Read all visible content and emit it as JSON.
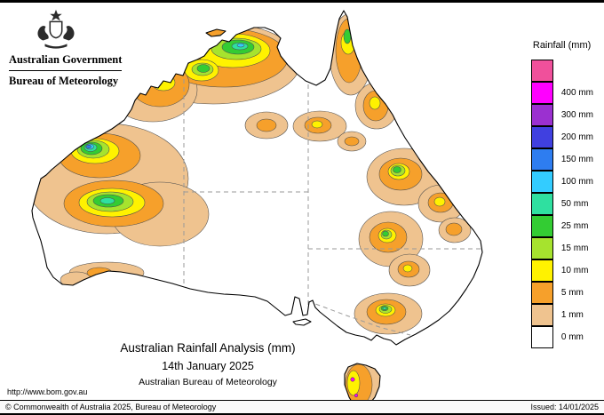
{
  "header": {
    "gov": "Australian Government",
    "bureau": "Bureau of Meteorology"
  },
  "legend": {
    "title": "Rainfall (mm)",
    "entries": [
      {
        "label": "",
        "color": "#f0509b"
      },
      {
        "label": "400 mm",
        "color": "#ff00ff"
      },
      {
        "label": "300 mm",
        "color": "#9b30d0"
      },
      {
        "label": "200 mm",
        "color": "#4040e0"
      },
      {
        "label": "150 mm",
        "color": "#2e7df0"
      },
      {
        "label": "100 mm",
        "color": "#33ccff"
      },
      {
        "label": "50 mm",
        "color": "#2fe0a0"
      },
      {
        "label": "25 mm",
        "color": "#33cc33"
      },
      {
        "label": "15 mm",
        "color": "#a6e32e"
      },
      {
        "label": "10 mm",
        "color": "#fff200"
      },
      {
        "label": "5 mm",
        "color": "#f6a02b"
      },
      {
        "label": "1 mm",
        "color": "#efc38f"
      },
      {
        "label": "0 mm",
        "color": "#ffffff"
      }
    ]
  },
  "titles": {
    "line1": "Australian Rainfall Analysis (mm)",
    "line2": "14th January 2025",
    "line3": "Australian Bureau of Meteorology"
  },
  "links": {
    "website": "http://www.bom.gov.au"
  },
  "footer": {
    "left": "© Commonwealth of Australia 2025, Bureau of Meteorology",
    "right": "Issued: 14/01/2025"
  }
}
